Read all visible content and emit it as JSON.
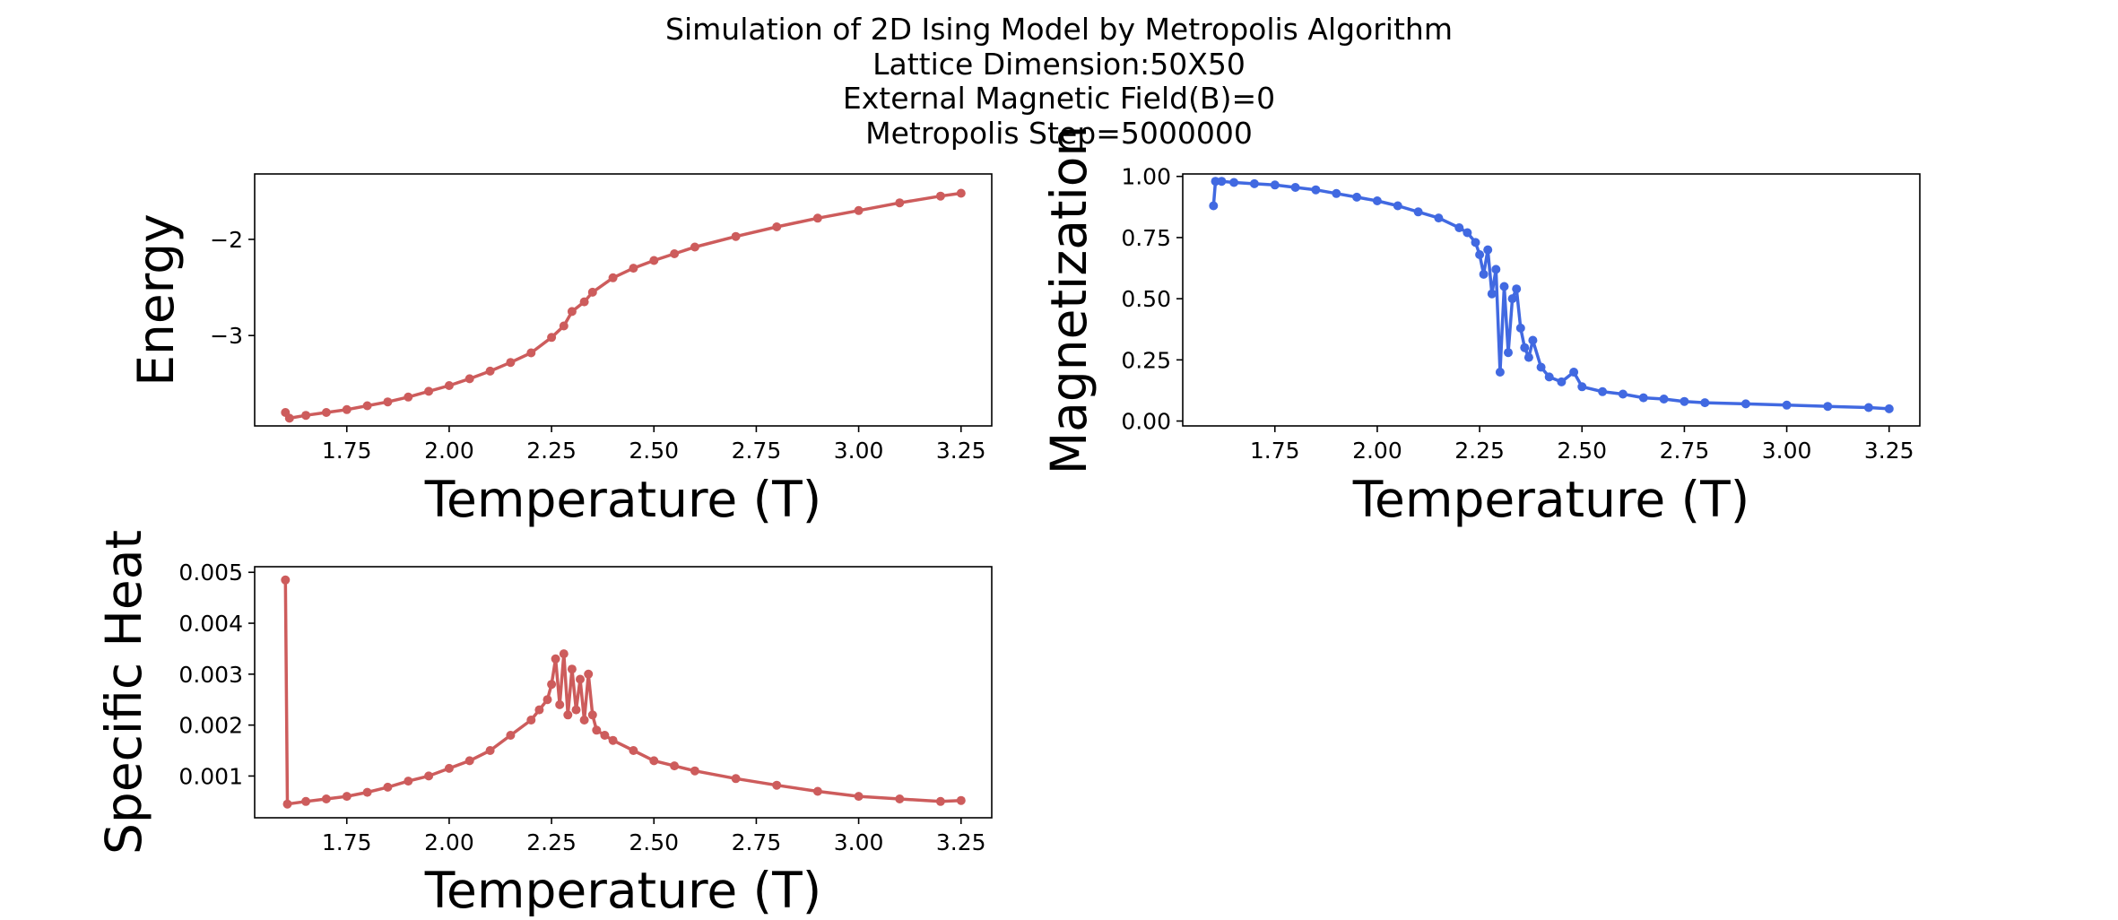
{
  "figure": {
    "title_lines": [
      "Simulation of 2D Ising Model by Metropolis Algorithm",
      "Lattice Dimension:50X50",
      "External Magnetic Field(B)=0",
      "Metropolis Step=5000000"
    ]
  },
  "chart_data": [
    {
      "id": "energy",
      "type": "line",
      "marker": "circle",
      "color": "#cd5c5c",
      "xlabel": "Temperature (T)",
      "ylabel": "Energy",
      "xlim": [
        1.525,
        3.325
      ],
      "ylim": [
        -3.94,
        -1.32
      ],
      "xticks": [
        1.75,
        2.0,
        2.25,
        2.5,
        2.75,
        3.0,
        3.25
      ],
      "xtick_labels": [
        "1.75",
        "2.00",
        "2.25",
        "2.50",
        "2.75",
        "3.00",
        "3.25"
      ],
      "yticks": [
        -2,
        -3
      ],
      "ytick_labels": [
        "−2",
        "−3"
      ],
      "grid": false,
      "series": [
        {
          "x": [
            1.6,
            1.61,
            1.65,
            1.7,
            1.75,
            1.8,
            1.85,
            1.9,
            1.95,
            2.0,
            2.05,
            2.1,
            2.15,
            2.2,
            2.25,
            2.28,
            2.3,
            2.33,
            2.35,
            2.4,
            2.45,
            2.5,
            2.55,
            2.6,
            2.7,
            2.8,
            2.9,
            3.0,
            3.1,
            3.2,
            3.25
          ],
          "y": [
            -3.8,
            -3.86,
            -3.83,
            -3.8,
            -3.77,
            -3.73,
            -3.69,
            -3.64,
            -3.58,
            -3.52,
            -3.45,
            -3.37,
            -3.28,
            -3.18,
            -3.02,
            -2.9,
            -2.75,
            -2.65,
            -2.55,
            -2.4,
            -2.3,
            -2.22,
            -2.15,
            -2.08,
            -1.97,
            -1.87,
            -1.78,
            -1.7,
            -1.62,
            -1.55,
            -1.52
          ]
        }
      ]
    },
    {
      "id": "magnetization",
      "type": "line",
      "marker": "circle",
      "color": "#4169e1",
      "xlabel": "Temperature (T)",
      "ylabel": "Magnetization",
      "xlim": [
        1.525,
        3.325
      ],
      "ylim": [
        -0.02,
        1.01
      ],
      "xticks": [
        1.75,
        2.0,
        2.25,
        2.5,
        2.75,
        3.0,
        3.25
      ],
      "xtick_labels": [
        "1.75",
        "2.00",
        "2.25",
        "2.50",
        "2.75",
        "3.00",
        "3.25"
      ],
      "yticks": [
        0.0,
        0.25,
        0.5,
        0.75,
        1.0
      ],
      "ytick_labels": [
        "0.00",
        "0.25",
        "0.50",
        "0.75",
        "1.00"
      ],
      "grid": false,
      "series": [
        {
          "x": [
            1.6,
            1.605,
            1.62,
            1.65,
            1.7,
            1.75,
            1.8,
            1.85,
            1.9,
            1.95,
            2.0,
            2.05,
            2.1,
            2.15,
            2.2,
            2.22,
            2.24,
            2.25,
            2.26,
            2.27,
            2.28,
            2.29,
            2.3,
            2.31,
            2.32,
            2.33,
            2.34,
            2.35,
            2.36,
            2.37,
            2.38,
            2.4,
            2.42,
            2.45,
            2.48,
            2.5,
            2.55,
            2.6,
            2.65,
            2.7,
            2.75,
            2.8,
            2.9,
            3.0,
            3.1,
            3.2,
            3.25
          ],
          "y": [
            0.88,
            0.98,
            0.98,
            0.975,
            0.97,
            0.965,
            0.955,
            0.945,
            0.93,
            0.915,
            0.9,
            0.88,
            0.855,
            0.83,
            0.79,
            0.77,
            0.73,
            0.68,
            0.6,
            0.7,
            0.52,
            0.62,
            0.2,
            0.55,
            0.28,
            0.5,
            0.54,
            0.38,
            0.3,
            0.26,
            0.33,
            0.22,
            0.18,
            0.16,
            0.2,
            0.14,
            0.12,
            0.11,
            0.095,
            0.09,
            0.08,
            0.075,
            0.07,
            0.065,
            0.06,
            0.055,
            0.05
          ]
        }
      ]
    },
    {
      "id": "specific-heat",
      "type": "line",
      "marker": "circle",
      "color": "#cd5c5c",
      "xlabel": "Temperature (T)",
      "ylabel": "Specific Heat",
      "xlim": [
        1.525,
        3.325
      ],
      "ylim": [
        0.00018,
        0.00511
      ],
      "xticks": [
        1.75,
        2.0,
        2.25,
        2.5,
        2.75,
        3.0,
        3.25
      ],
      "xtick_labels": [
        "1.75",
        "2.00",
        "2.25",
        "2.50",
        "2.75",
        "3.00",
        "3.25"
      ],
      "yticks": [
        0.001,
        0.002,
        0.003,
        0.004,
        0.005
      ],
      "ytick_labels": [
        "0.001",
        "0.002",
        "0.003",
        "0.004",
        "0.005"
      ],
      "grid": false,
      "series": [
        {
          "x": [
            1.6,
            1.605,
            1.65,
            1.7,
            1.75,
            1.8,
            1.85,
            1.9,
            1.95,
            2.0,
            2.05,
            2.1,
            2.15,
            2.2,
            2.22,
            2.24,
            2.25,
            2.26,
            2.27,
            2.28,
            2.29,
            2.3,
            2.31,
            2.32,
            2.33,
            2.34,
            2.35,
            2.36,
            2.38,
            2.4,
            2.45,
            2.5,
            2.55,
            2.6,
            2.7,
            2.8,
            2.9,
            3.0,
            3.1,
            3.2,
            3.25
          ],
          "y": [
            0.00485,
            0.00045,
            0.0005,
            0.00055,
            0.0006,
            0.00068,
            0.00078,
            0.0009,
            0.001,
            0.00115,
            0.0013,
            0.0015,
            0.0018,
            0.0021,
            0.0023,
            0.0025,
            0.0028,
            0.0033,
            0.0024,
            0.0034,
            0.0022,
            0.0031,
            0.0023,
            0.0029,
            0.0021,
            0.003,
            0.0022,
            0.0019,
            0.0018,
            0.0017,
            0.0015,
            0.0013,
            0.0012,
            0.0011,
            0.00095,
            0.00082,
            0.0007,
            0.0006,
            0.00055,
            0.0005,
            0.00052
          ]
        }
      ]
    }
  ]
}
